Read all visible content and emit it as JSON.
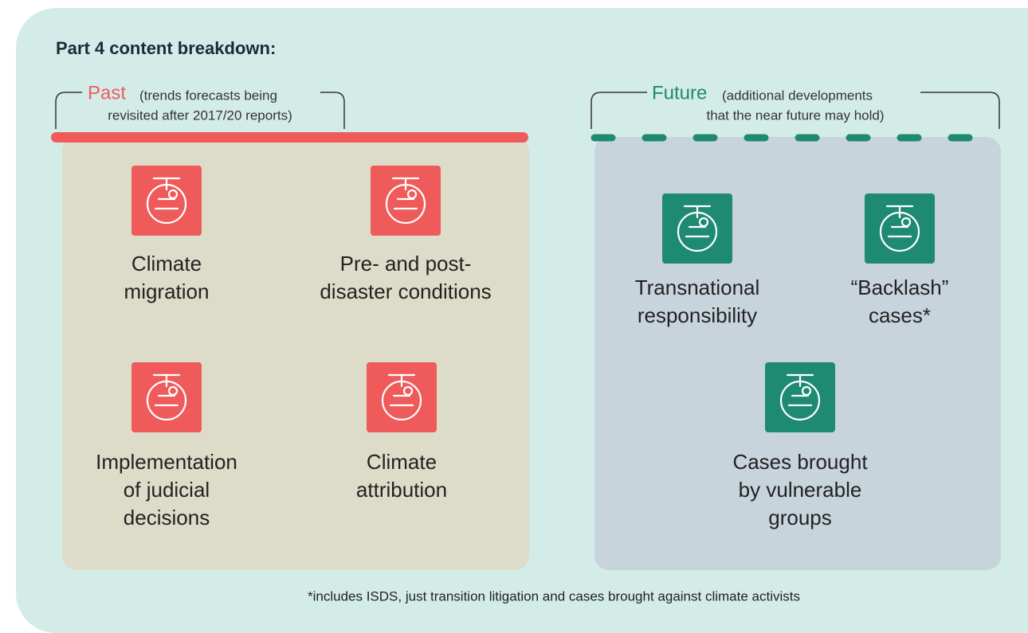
{
  "title": "Part 4 content breakdown:",
  "past": {
    "label": "Past",
    "note": [
      "(trends forecasts being",
      "revisited after 2017/20 reports)"
    ],
    "items": [
      {
        "lines": [
          "Climate",
          "migration"
        ]
      },
      {
        "lines": [
          "Pre- and post-",
          "disaster conditions"
        ]
      },
      {
        "lines": [
          "Implementation",
          "of judicial",
          "decisions"
        ]
      },
      {
        "lines": [
          "Climate",
          "attribution"
        ]
      }
    ]
  },
  "future": {
    "label": "Future",
    "note": [
      "(additional developments",
      "that the near future may hold)"
    ],
    "items": [
      {
        "lines": [
          "Transnational",
          "responsibility"
        ]
      },
      {
        "lines": [
          "“Backlash”",
          "cases*"
        ]
      },
      {
        "lines": [
          "Cases brought",
          "by vulnerable",
          "groups"
        ]
      }
    ]
  },
  "footnote": "*includes ISDS, just transition litigation and cases brought against climate activists"
}
